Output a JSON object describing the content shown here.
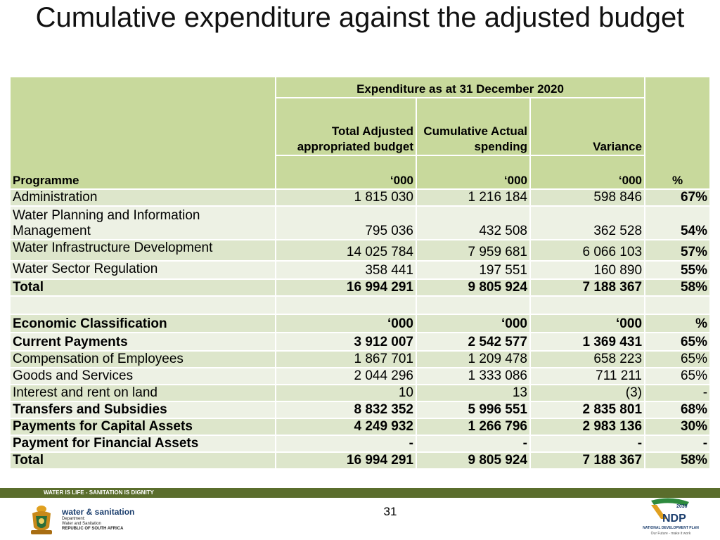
{
  "title": "Cumulative expenditure against the adjusted budget",
  "table": {
    "header": {
      "programme": "Programme",
      "expenditure_group": "Expenditure as at 31 December 2020",
      "percent": "%",
      "col_budget": "Total Adjusted appropriated budget",
      "col_spending": "Cumulative Actual spending",
      "col_variance": "Variance",
      "unit": "‘000"
    },
    "programmes": [
      {
        "label": "Administration",
        "budget": "1 815 030",
        "spending": "1 216 184",
        "variance": "598 846",
        "percent": "67%"
      },
      {
        "label": "Water Planning and Information Management",
        "budget": "795 036",
        "spending": "432 508",
        "variance": "362 528",
        "percent": "54%"
      },
      {
        "label": "Water Infrastructure Development",
        "budget": "14 025 784",
        "spending": "7 959 681",
        "variance": "6 066 103",
        "percent": "57%"
      },
      {
        "label": "Water Sector Regulation",
        "budget": "358 441",
        "spending": "197 551",
        "variance": "160 890",
        "percent": "55%"
      }
    ],
    "programme_total": {
      "label": "Total",
      "budget": "16 994 291",
      "spending": "9 805 924",
      "variance": "7 188 367",
      "percent": "58%"
    },
    "economic_header": {
      "label": "Economic Classification",
      "unit": "‘000",
      "percent": "%"
    },
    "current_payments": {
      "label": "Current Payments",
      "budget": "3 912 007",
      "spending": "2 542 577",
      "variance": "1 369 431",
      "percent": "65%"
    },
    "current_items": [
      {
        "label": "Compensation of Employees",
        "budget": "1 867 701",
        "spending": "1 209 478",
        "variance": "658 223",
        "percent": "65%"
      },
      {
        "label": "Goods and Services",
        "budget": "2 044 296",
        "spending": "1 333 086",
        "variance": "711 211",
        "percent": "65%"
      },
      {
        "label": "Interest and rent on land",
        "budget": "10",
        "spending": "13",
        "variance": "(3)",
        "percent": "-"
      }
    ],
    "bold_items": [
      {
        "label": "Transfers and Subsidies",
        "budget": "8 832 352",
        "spending": "5 996 551",
        "variance": "2 835 801",
        "percent": "68%"
      },
      {
        "label": "Payments  for Capital Assets",
        "budget": "4 249 932",
        "spending": "1 266 796",
        "variance": "2 983 136",
        "percent": "30%"
      },
      {
        "label": "Payment for Financial  Assets",
        "budget": "-",
        "spending": "-",
        "variance": "-",
        "percent": "-"
      }
    ],
    "economic_total": {
      "label": "Total",
      "budget": "16 994 291",
      "spending": "9 805 924",
      "variance": "7 188 367",
      "percent": "58%"
    }
  },
  "footer": {
    "banner": "WATER IS LIFE - SANITATION IS DIGNITY",
    "dept_name": "water & sanitation",
    "dept_line1": "Department:",
    "dept_line2": "Water and Sanitation",
    "dept_line3": "REPUBLIC OF SOUTH AFRICA",
    "page_number": "31",
    "ndp_name": "NATIONAL DEVELOPMENT PLAN",
    "ndp_tagline": "Our Future - make it work",
    "ndp_year": "2030",
    "ndp_logo": "NDP",
    "colors": {
      "header_green": "#c8d99c",
      "row_green": "#dde6cb",
      "row_light": "#edf1e4",
      "banner": "#5a6d2c"
    }
  }
}
